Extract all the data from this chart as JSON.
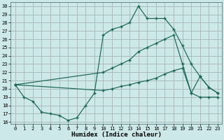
{
  "xlabel": "Humidex (Indice chaleur)",
  "background_color": "#cce8e8",
  "grid_color": "#aabbbb",
  "line_color": "#1a6655",
  "xlim": [
    -0.5,
    23.5
  ],
  "ylim": [
    15.8,
    30.5
  ],
  "yticks": [
    16,
    17,
    18,
    19,
    20,
    21,
    22,
    23,
    24,
    25,
    26,
    27,
    28,
    29,
    30
  ],
  "xticks": [
    0,
    1,
    2,
    3,
    4,
    5,
    6,
    7,
    8,
    9,
    10,
    11,
    12,
    13,
    14,
    15,
    16,
    17,
    18,
    19,
    20,
    21,
    22,
    23
  ],
  "line1_x": [
    0,
    1,
    2,
    3,
    4,
    5,
    6,
    7,
    8,
    9,
    10,
    11,
    12,
    13,
    14,
    15,
    16,
    17,
    18,
    19,
    20,
    21,
    22,
    23
  ],
  "line1_y": [
    20.5,
    19.0,
    18.5,
    17.2,
    17.0,
    16.8,
    16.2,
    16.5,
    18.0,
    19.5,
    26.5,
    27.2,
    27.5,
    28.0,
    30.0,
    28.5,
    28.5,
    28.5,
    27.2,
    25.2,
    23.0,
    21.5,
    20.2,
    19.5
  ],
  "line2_x": [
    0,
    10,
    11,
    12,
    13,
    14,
    15,
    16,
    17,
    18,
    19,
    20,
    21,
    22,
    23
  ],
  "line2_y": [
    20.5,
    22.0,
    22.5,
    23.0,
    23.5,
    24.5,
    25.0,
    25.5,
    26.0,
    26.5,
    23.0,
    19.5,
    21.5,
    20.2,
    19.5
  ],
  "line3_x": [
    0,
    10,
    11,
    12,
    13,
    14,
    15,
    16,
    17,
    18,
    19,
    20,
    21,
    22,
    23
  ],
  "line3_y": [
    20.5,
    19.8,
    20.0,
    20.3,
    20.5,
    20.8,
    21.0,
    21.3,
    21.8,
    22.2,
    22.5,
    19.5,
    19.0,
    19.0,
    19.0
  ]
}
